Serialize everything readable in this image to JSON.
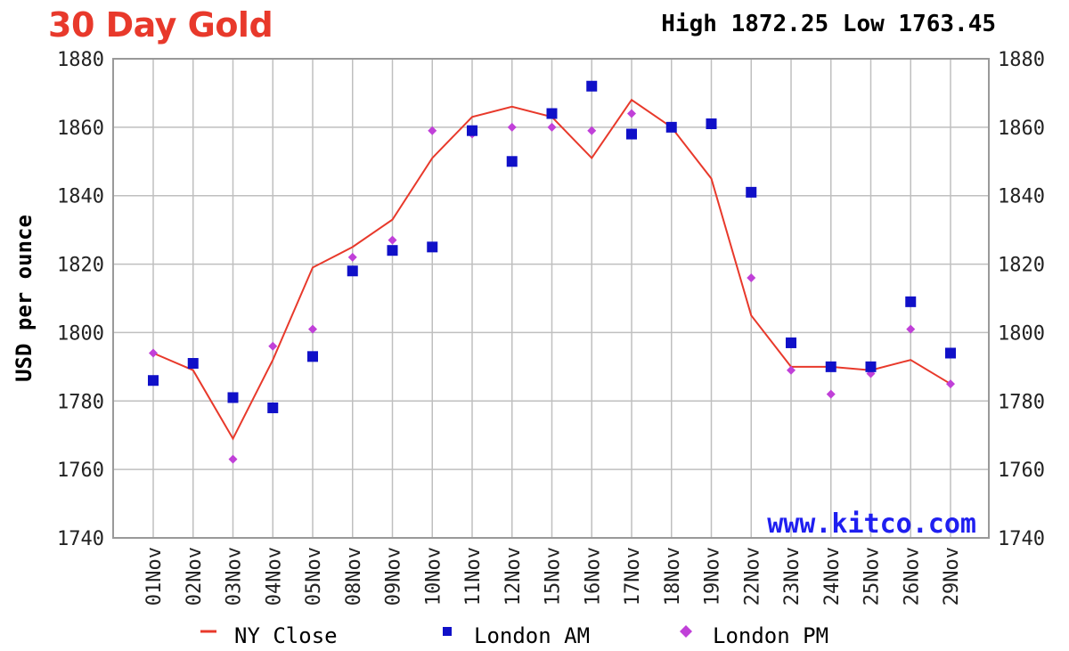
{
  "header": {
    "title": "30 Day Gold",
    "high_label": "High",
    "high_value": "1872.25",
    "low_label": "Low",
    "low_value": "1763.45"
  },
  "watermark": "www.kitco.com",
  "colors": {
    "ny_close": "#e8392b",
    "london_am": "#1010c8",
    "london_pm": "#c040d8",
    "grid": "#bfbfbf",
    "title": "#e8392b"
  },
  "chart_data": {
    "type": "line",
    "ylabel": "USD per ounce",
    "ylim": [
      1740,
      1880
    ],
    "yticks": [
      1740,
      1760,
      1780,
      1800,
      1820,
      1840,
      1860,
      1880
    ],
    "categories": [
      "01Nov",
      "02Nov",
      "03Nov",
      "04Nov",
      "05Nov",
      "08Nov",
      "09Nov",
      "10Nov",
      "11Nov",
      "12Nov",
      "15Nov",
      "16Nov",
      "17Nov",
      "18Nov",
      "19Nov",
      "22Nov",
      "23Nov",
      "24Nov",
      "25Nov",
      "26Nov",
      "29Nov"
    ],
    "grid": true,
    "legend_position": "bottom",
    "series": [
      {
        "name": "NY Close",
        "kind": "line",
        "values": [
          1794,
          1789,
          1769,
          1792,
          1819,
          1825,
          1833,
          1851,
          1863,
          1866,
          1863,
          1851,
          1868,
          1860,
          1845,
          1805,
          1790,
          1790,
          1789,
          1792,
          1785
        ]
      },
      {
        "name": "London AM",
        "kind": "square",
        "values": [
          1786,
          1791,
          1781,
          1778,
          1793,
          1818,
          1824,
          1825,
          1859,
          1850,
          1864,
          1872,
          1858,
          1860,
          1861,
          1841,
          1797,
          1790,
          1790,
          1809,
          1794
        ]
      },
      {
        "name": "London PM",
        "kind": "diamond",
        "values": [
          1794,
          1791,
          1763,
          1796,
          1801,
          1822,
          1827,
          1859,
          1858,
          1860,
          1860,
          1859,
          1864,
          1860,
          1861,
          1816,
          1789,
          1782,
          1788,
          1801,
          1785
        ]
      }
    ]
  }
}
